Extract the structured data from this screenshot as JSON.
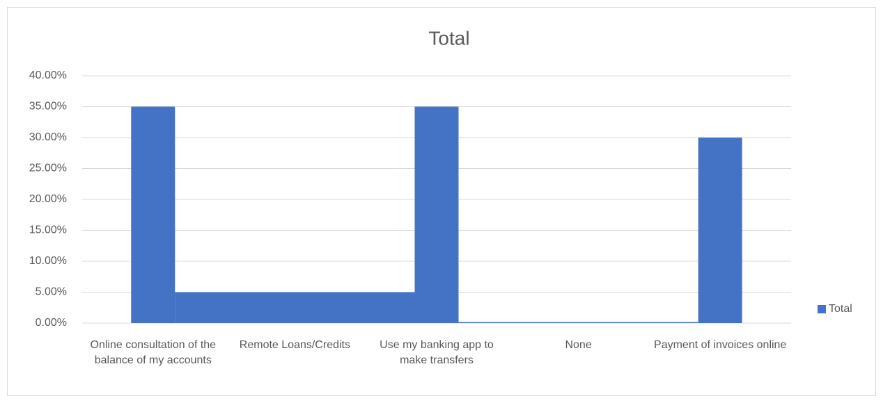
{
  "chart_data": {
    "type": "bar",
    "title": "Total",
    "categories": [
      "Online consultation of the balance of my accounts",
      "Remote Loans/Credits",
      "Use my banking app to make transfers",
      "None",
      "Payment of invoices online"
    ],
    "series": [
      {
        "name": "Total",
        "color": "#4472c4",
        "values": [
          35,
          5,
          35,
          0,
          30
        ]
      }
    ],
    "ylim": [
      0,
      40
    ],
    "yticks": [
      {
        "value": 0,
        "label": "0.00%"
      },
      {
        "value": 5,
        "label": "5.00%"
      },
      {
        "value": 10,
        "label": "10.00%"
      },
      {
        "value": 15,
        "label": "15.00%"
      },
      {
        "value": 20,
        "label": "20.00%"
      },
      {
        "value": 25,
        "label": "25.00%"
      },
      {
        "value": 30,
        "label": "30.00%"
      },
      {
        "value": 35,
        "label": "35.00%"
      },
      {
        "value": 40,
        "label": "40.00%"
      }
    ],
    "grid": true,
    "legend": "right"
  }
}
